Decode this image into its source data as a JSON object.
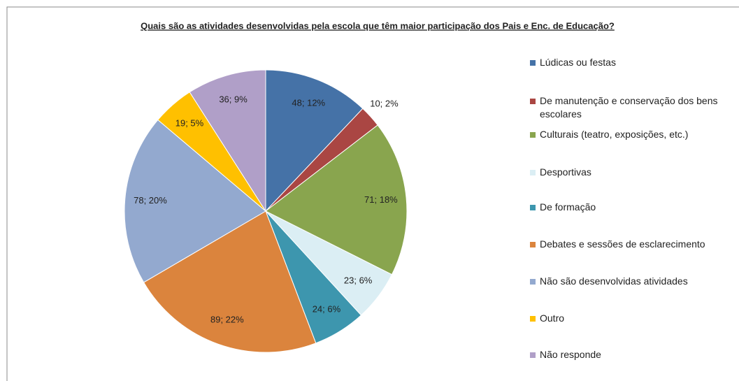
{
  "chart_data": {
    "type": "pie",
    "title": "Quais são as atividades desenvolvidas pela escola que têm maior participação dos Pais e Enc. de Educação?",
    "categories": [
      "Lúdicas ou festas",
      "De manutenção e conservação dos bens escolares",
      "Culturais (teatro, exposições, etc.)",
      "Desportivas",
      "De formação",
      "Debates e sessões de esclarecimento",
      "Não são desenvolvidas atividades",
      "Outro",
      "Não responde"
    ],
    "values": [
      48,
      10,
      71,
      23,
      24,
      89,
      78,
      19,
      36
    ],
    "value_labels": [
      "48; 12%",
      "10; 2%",
      "71; 18%",
      "23; 6%",
      "24; 6%",
      "89; 22%",
      "78; 20%",
      "19; 5%",
      "36; 9%"
    ],
    "colors": [
      "#4572a7",
      "#aa4643",
      "#89a54e",
      "#dbeef4",
      "#3d96ae",
      "#db843d",
      "#93a9cf",
      "#ffc000",
      "#b09fc8"
    ],
    "legend": "right"
  }
}
